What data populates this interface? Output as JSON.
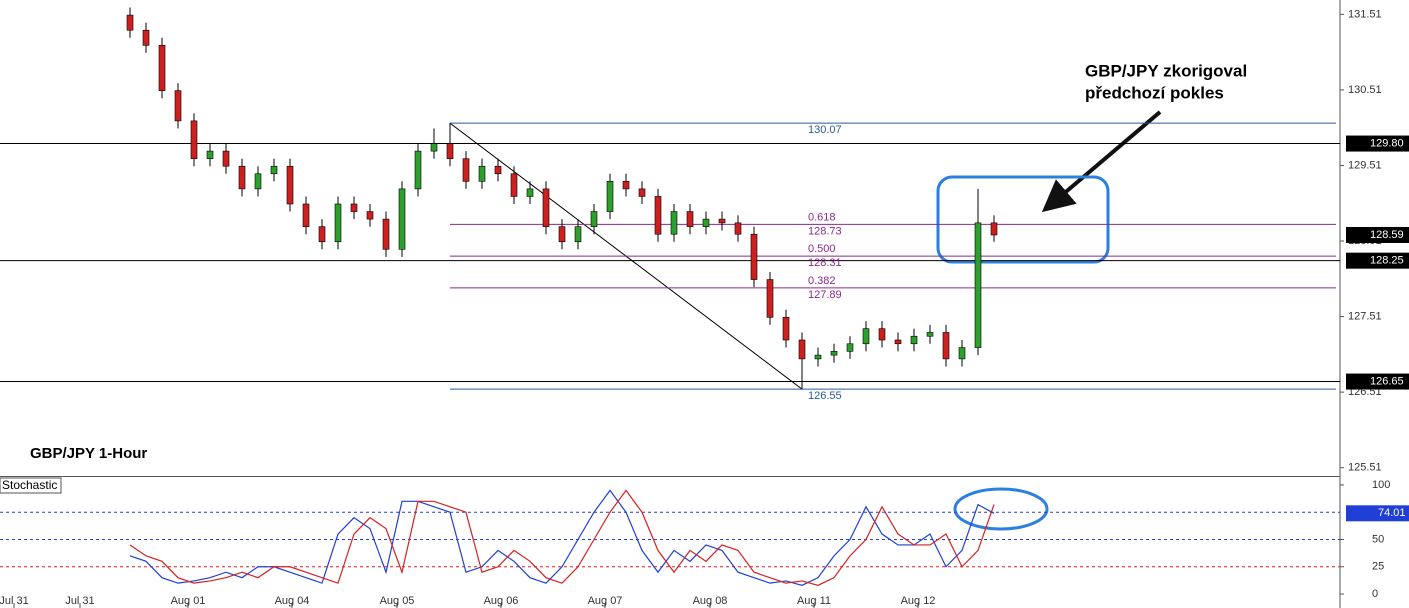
{
  "chart_data": [
    {
      "type": "candlestick",
      "title": "GBP/JPY 1-Hour",
      "annotation": [
        "GBP/JPY zkorigoval",
        "předchozí pokles"
      ],
      "up_color": "#2e9e2e",
      "down_color": "#cc1f1f",
      "open": [
        131.5,
        131.3,
        131.1,
        130.5,
        130.1,
        129.6,
        129.7,
        129.5,
        129.2,
        129.4,
        129.5,
        129.0,
        128.7,
        128.5,
        129.0,
        128.9,
        128.8,
        128.4,
        129.2,
        129.7,
        129.8,
        129.6,
        129.3,
        129.5,
        129.4,
        129.1,
        129.2,
        128.7,
        128.5,
        128.7,
        128.9,
        129.3,
        129.2,
        129.1,
        128.6,
        128.9,
        128.7,
        128.8,
        128.75,
        128.6,
        128.0,
        127.5,
        127.2,
        126.95,
        127.0,
        127.05,
        127.15,
        127.35,
        127.2,
        127.15,
        127.25,
        127.3,
        126.95,
        127.1,
        128.75
      ],
      "high": [
        131.6,
        131.4,
        131.2,
        130.6,
        130.2,
        129.8,
        129.8,
        129.6,
        129.5,
        129.6,
        129.6,
        129.1,
        128.8,
        129.1,
        129.1,
        129.0,
        128.9,
        129.3,
        129.8,
        130.0,
        130.07,
        129.7,
        129.6,
        129.6,
        129.5,
        129.3,
        129.3,
        128.8,
        128.8,
        129.0,
        129.4,
        129.4,
        129.3,
        129.2,
        129.0,
        129.0,
        128.9,
        128.9,
        128.85,
        128.7,
        128.1,
        127.6,
        127.3,
        127.1,
        127.15,
        127.25,
        127.45,
        127.45,
        127.3,
        127.35,
        127.4,
        127.4,
        127.2,
        129.2,
        128.85
      ],
      "low": [
        131.2,
        131.0,
        130.4,
        130.0,
        129.5,
        129.5,
        129.4,
        129.1,
        129.1,
        129.3,
        128.9,
        128.6,
        128.4,
        128.4,
        128.8,
        128.7,
        128.3,
        128.3,
        129.1,
        129.6,
        129.5,
        129.2,
        129.2,
        129.3,
        129.0,
        129.0,
        128.6,
        128.4,
        128.4,
        128.6,
        128.8,
        129.1,
        129.0,
        128.5,
        128.5,
        128.6,
        128.6,
        128.65,
        128.5,
        127.9,
        127.4,
        127.1,
        126.55,
        126.85,
        126.9,
        126.95,
        127.05,
        127.1,
        127.05,
        127.05,
        127.15,
        126.85,
        126.85,
        127.0,
        128.5
      ],
      "close": [
        131.3,
        131.1,
        130.5,
        130.1,
        129.6,
        129.7,
        129.5,
        129.2,
        129.4,
        129.5,
        129.0,
        128.7,
        128.5,
        129.0,
        128.9,
        128.8,
        128.4,
        129.2,
        129.7,
        129.8,
        129.6,
        129.3,
        129.5,
        129.4,
        129.1,
        129.2,
        128.7,
        128.5,
        128.7,
        128.9,
        129.3,
        129.2,
        129.1,
        128.6,
        128.9,
        128.7,
        128.8,
        128.75,
        128.6,
        128.0,
        127.5,
        127.2,
        126.95,
        127.0,
        127.05,
        127.15,
        127.35,
        127.2,
        127.15,
        127.25,
        127.3,
        126.95,
        127.1,
        128.75,
        128.59
      ],
      "xlim": [
        -8.125,
        75.625
      ],
      "xticks": [
        {
          "value": -7.25,
          "label": "Jul 31"
        },
        {
          "value": -3.125,
          "label": "Jul 31"
        },
        {
          "value": 3.625,
          "label": "Aug 01"
        },
        {
          "value": 10.125,
          "label": "Aug 04"
        },
        {
          "value": 16.6875,
          "label": "Aug 05"
        },
        {
          "value": 23.1875,
          "label": "Aug 06"
        },
        {
          "value": 29.6875,
          "label": "Aug 07"
        },
        {
          "value": 36.25,
          "label": "Aug 08"
        },
        {
          "value": 42.75,
          "label": "Aug 11"
        },
        {
          "value": 49.25,
          "label": "Aug 12"
        }
      ],
      "ylim": [
        125.4,
        131.7
      ],
      "yticks": [
        131.51,
        130.51,
        129.51,
        128.51,
        127.51,
        126.51,
        125.51
      ],
      "levels": [
        {
          "value": 129.8,
          "label": "129.80"
        },
        128.25,
        126.65
      ],
      "current": 128.59,
      "fib": {
        "start": 20,
        "high": 130.07,
        "low": 126.55,
        "levels": [
          {
            "ratio": 0.618,
            "price": 128.73
          },
          {
            "ratio": {
              "value": 0.5,
              "label": "0.500"
            },
            "price": 128.31
          },
          {
            "ratio": 0.382,
            "price": 127.89
          }
        ]
      }
    },
    {
      "type": "line",
      "title": "Stochastic",
      "series": [
        {
          "color": "#1f3fd6",
          "values": [
            35,
            30,
            15,
            10,
            12,
            15,
            20,
            15,
            25,
            25,
            20,
            15,
            10,
            55,
            70,
            60,
            20,
            85,
            85,
            80,
            75,
            20,
            25,
            40,
            30,
            15,
            10,
            25,
            50,
            75,
            95,
            75,
            40,
            20,
            40,
            30,
            45,
            40,
            20,
            15,
            10,
            12,
            8,
            15,
            35,
            50,
            80,
            55,
            45,
            45,
            55,
            25,
            40,
            82,
            74.01
          ]
        },
        {
          "color": "#d62020",
          "values": [
            45,
            35,
            30,
            15,
            10,
            12,
            15,
            20,
            15,
            25,
            25,
            20,
            15,
            10,
            55,
            70,
            60,
            20,
            85,
            85,
            80,
            75,
            20,
            25,
            40,
            30,
            15,
            10,
            25,
            50,
            75,
            95,
            75,
            40,
            20,
            40,
            30,
            45,
            40,
            20,
            15,
            10,
            12,
            8,
            15,
            35,
            50,
            80,
            55,
            45,
            45,
            55,
            25,
            40,
            82
          ]
        }
      ],
      "ylim": [
        -12.8,
        107.3
      ],
      "yticks": [
        100,
        50,
        25,
        0
      ],
      "levels": [
        {
          "value": 75,
          "color": "#1f3fd6"
        },
        {
          "value": 50,
          "color": "#1f3fd6"
        },
        {
          "value": 25,
          "color": "#d62020"
        }
      ],
      "current": 74.01
    }
  ]
}
